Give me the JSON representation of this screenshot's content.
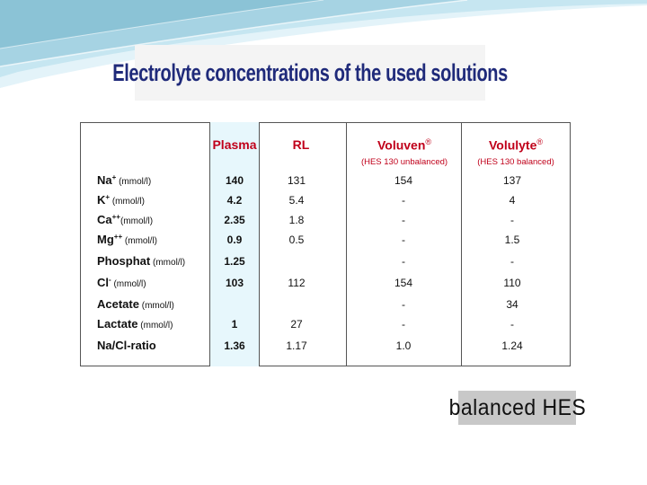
{
  "slide": {
    "title": "Electrolyte concentrations of the used solutions",
    "badge": "balanced  HES"
  },
  "table": {
    "headers": [
      {
        "label": "Plasma",
        "mark": "",
        "sub": ""
      },
      {
        "label": "RL",
        "mark": "",
        "sub": ""
      },
      {
        "label": "Voluven",
        "mark": "®",
        "sub": "(HES 130 unbalanced)"
      },
      {
        "label": "Volulyte",
        "mark": "®",
        "sub": "(HES 130 balanced)"
      }
    ],
    "rows": [
      {
        "name": "Na",
        "charge": "+",
        "unit": " (mmol/l)",
        "values": [
          "140",
          "131",
          "154",
          "137"
        ]
      },
      {
        "name": "K",
        "charge": "+",
        "unit": " (mmol/l)",
        "values": [
          "4.2",
          "5.4",
          "-",
          "4"
        ]
      },
      {
        "name": "Ca",
        "charge": "++",
        "unit": "(mmol/l)",
        "values": [
          "2.35",
          "1.8",
          "-",
          "-"
        ]
      },
      {
        "name": "Mg",
        "charge": "++",
        "unit": " (mmol/l)",
        "values": [
          "0.9",
          "0.5",
          "-",
          "1.5"
        ]
      },
      {
        "name": "Phosphat",
        "charge": "",
        "unit": " (mmol/l)",
        "values": [
          "1.25",
          "",
          "-",
          "-"
        ]
      },
      {
        "name": "Cl",
        "charge": "-",
        "unit": " (mmol/l)",
        "values": [
          "103",
          "112",
          "154",
          "110"
        ]
      },
      {
        "name": "Acetate",
        "charge": "",
        "unit": " (mmol/l)",
        "values": [
          "",
          "",
          "-",
          "34"
        ]
      },
      {
        "name": "Lactate",
        "charge": "",
        "unit": " (mmol/l)",
        "values": [
          "1",
          "27",
          "-",
          "-"
        ]
      },
      {
        "name": "Na/Cl-ratio",
        "charge": "",
        "unit": "",
        "values": [
          "1.36",
          "1.17",
          "1.0",
          "1.24"
        ]
      }
    ]
  },
  "colors": {
    "title": "#1f2a7a",
    "header": "#c0001a",
    "plasma_fill": "#e7f7fc",
    "swoosh_light": "#d7eef6",
    "swoosh_dark": "#8fc6d8"
  }
}
